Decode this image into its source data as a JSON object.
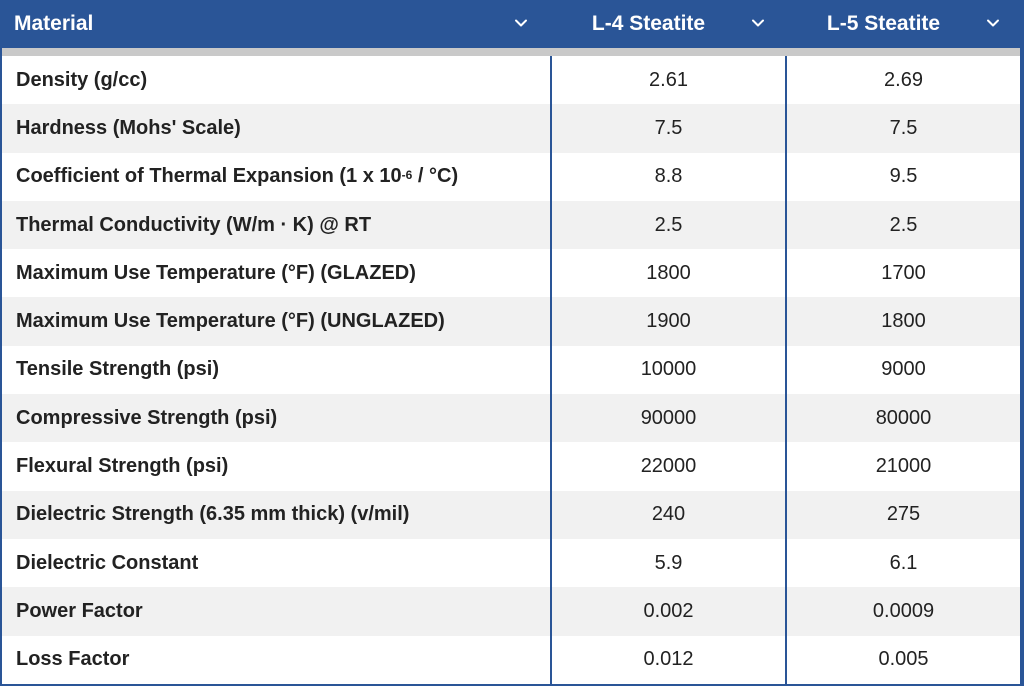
{
  "table": {
    "columns": [
      {
        "label": "Material",
        "icon": "chevron-down-icon"
      },
      {
        "label": "L-4 Steatite",
        "icon": "chevron-down-icon"
      },
      {
        "label": "L-5 Steatite",
        "icon": "chevron-down-icon"
      }
    ],
    "rows": [
      {
        "name": "Density (g/cc)",
        "l4": "2.61",
        "l5": "2.69"
      },
      {
        "name": "Hardness (Mohs' Scale)",
        "l4": "7.5",
        "l5": "7.5"
      },
      {
        "name_pre": "Coefficient of Thermal Expansion (1 x 10",
        "name_sup": "-6",
        "name_post": " / °C)",
        "l4": "8.8",
        "l5": "9.5"
      },
      {
        "name": "Thermal Conductivity (W/m · K) @ RT",
        "l4": "2.5",
        "l5": "2.5"
      },
      {
        "name": "Maximum Use Temperature (°F) (GLAZED)",
        "l4": "1800",
        "l5": "1700"
      },
      {
        "name": "Maximum Use Temperature (°F) (UNGLAZED)",
        "l4": "1900",
        "l5": "1800"
      },
      {
        "name": "Tensile Strength (psi)",
        "l4": "10000",
        "l5": "9000"
      },
      {
        "name": "Compressive Strength (psi)",
        "l4": "90000",
        "l5": "80000"
      },
      {
        "name": "Flexural Strength (psi)",
        "l4": "22000",
        "l5": "21000"
      },
      {
        "name": "Dielectric Strength (6.35 mm thick) (v/mil)",
        "l4": "240",
        "l5": "275"
      },
      {
        "name": "Dielectric Constant",
        "l4": "5.9",
        "l5": "6.1"
      },
      {
        "name": "Power Factor",
        "l4": "0.002",
        "l5": "0.0009"
      },
      {
        "name": "Loss Factor",
        "l4": "0.012",
        "l5": "0.005"
      }
    ]
  },
  "colors": {
    "header_bg": "#2a5597",
    "header_text": "#ffffff",
    "separator": "#c9c9c9",
    "alt_row": "#f1f1f1"
  }
}
